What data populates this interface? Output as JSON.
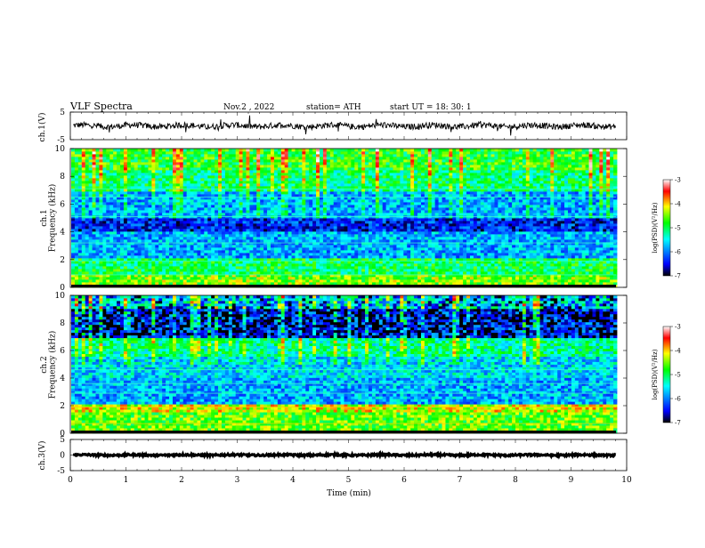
{
  "header": {
    "title": "VLF  Spectra",
    "date": "Nov.2  , 2022",
    "station": "station= ATH",
    "start_ut": "start  UT  =    18: 30: 1"
  },
  "colors": {
    "ramp": [
      "#000000",
      "#0000ff",
      "#00ffff",
      "#00ff00",
      "#ffff00",
      "#ff0000",
      "#ffffff"
    ],
    "trace": "#000000"
  },
  "chart_data": [
    {
      "type": "line",
      "title": "",
      "ylabel": "ch.1(V)",
      "xlabel": "",
      "xlim": [
        0,
        10
      ],
      "ylim": [
        -5,
        5
      ],
      "yticks": [
        "5",
        "-5"
      ],
      "series": [
        {
          "x_range": [
            0.05,
            9.8
          ],
          "mean": 0,
          "approx_amplitude": 1.3
        }
      ]
    },
    {
      "type": "heatmap",
      "title": "",
      "ylabel": "ch.1\nFrequency  (kHz)",
      "xlabel": "",
      "xlim": [
        0,
        10
      ],
      "ylim": [
        0,
        10
      ],
      "yticks": [
        "0",
        "2",
        "4",
        "6",
        "8",
        "10"
      ],
      "colorbar": {
        "label": "log(PSD)(V²/Hz)",
        "range": [
          -7,
          -3
        ],
        "ticks": [
          "-3",
          "-4",
          "-5",
          "-6",
          "-7"
        ]
      },
      "bands": [
        {
          "kHz": [
            0,
            1
          ],
          "log_psd": -4.5
        },
        {
          "kHz": [
            1,
            2.2
          ],
          "log_psd": -5
        },
        {
          "kHz": [
            2.2,
            4
          ],
          "log_psd": -5.8
        },
        {
          "kHz": [
            4,
            5
          ],
          "log_psd": -6.4
        },
        {
          "kHz": [
            5,
            7
          ],
          "log_psd": -5.8
        },
        {
          "kHz": [
            7,
            8.5
          ],
          "log_psd": -5.1
        },
        {
          "kHz": [
            8.5,
            10
          ],
          "log_psd": -4.8
        }
      ]
    },
    {
      "type": "heatmap",
      "title": "",
      "ylabel": "ch.2\nFrequency  (kHz)",
      "xlabel": "",
      "xlim": [
        0,
        10
      ],
      "ylim": [
        0,
        10
      ],
      "yticks": [
        "0",
        "2",
        "4",
        "6",
        "8",
        "10"
      ],
      "colorbar": {
        "label": "log(PSD)(V²/Hz)",
        "range": [
          -7,
          -3
        ],
        "ticks": [
          "-3",
          "-4",
          "-5",
          "-6",
          "-7"
        ]
      },
      "bands": [
        {
          "kHz": [
            0,
            1.5
          ],
          "log_psd": -4.6
        },
        {
          "kHz": [
            1.5,
            2.2
          ],
          "log_psd": -4.2
        },
        {
          "kHz": [
            2.2,
            4
          ],
          "log_psd": -5.8
        },
        {
          "kHz": [
            4,
            5.5
          ],
          "log_psd": -5.6
        },
        {
          "kHz": [
            5.5,
            7
          ],
          "log_psd": -5.2
        },
        {
          "kHz": [
            7,
            9
          ],
          "log_psd": -6.3
        },
        {
          "kHz": [
            9,
            10
          ],
          "log_psd": -5.4
        }
      ]
    },
    {
      "type": "line",
      "title": "",
      "ylabel": "ch.3(V)",
      "xlabel": "Time  (min)",
      "xlim": [
        0,
        10
      ],
      "ylim": [
        -5,
        5
      ],
      "yticks": [
        "5",
        "0",
        "-5"
      ],
      "xticks": [
        "0",
        "1",
        "2",
        "3",
        "4",
        "5",
        "6",
        "7",
        "8",
        "9",
        "10"
      ],
      "series": [
        {
          "x_range": [
            0.05,
            9.8
          ],
          "mean": 0,
          "approx_amplitude": 0.3
        }
      ]
    }
  ]
}
